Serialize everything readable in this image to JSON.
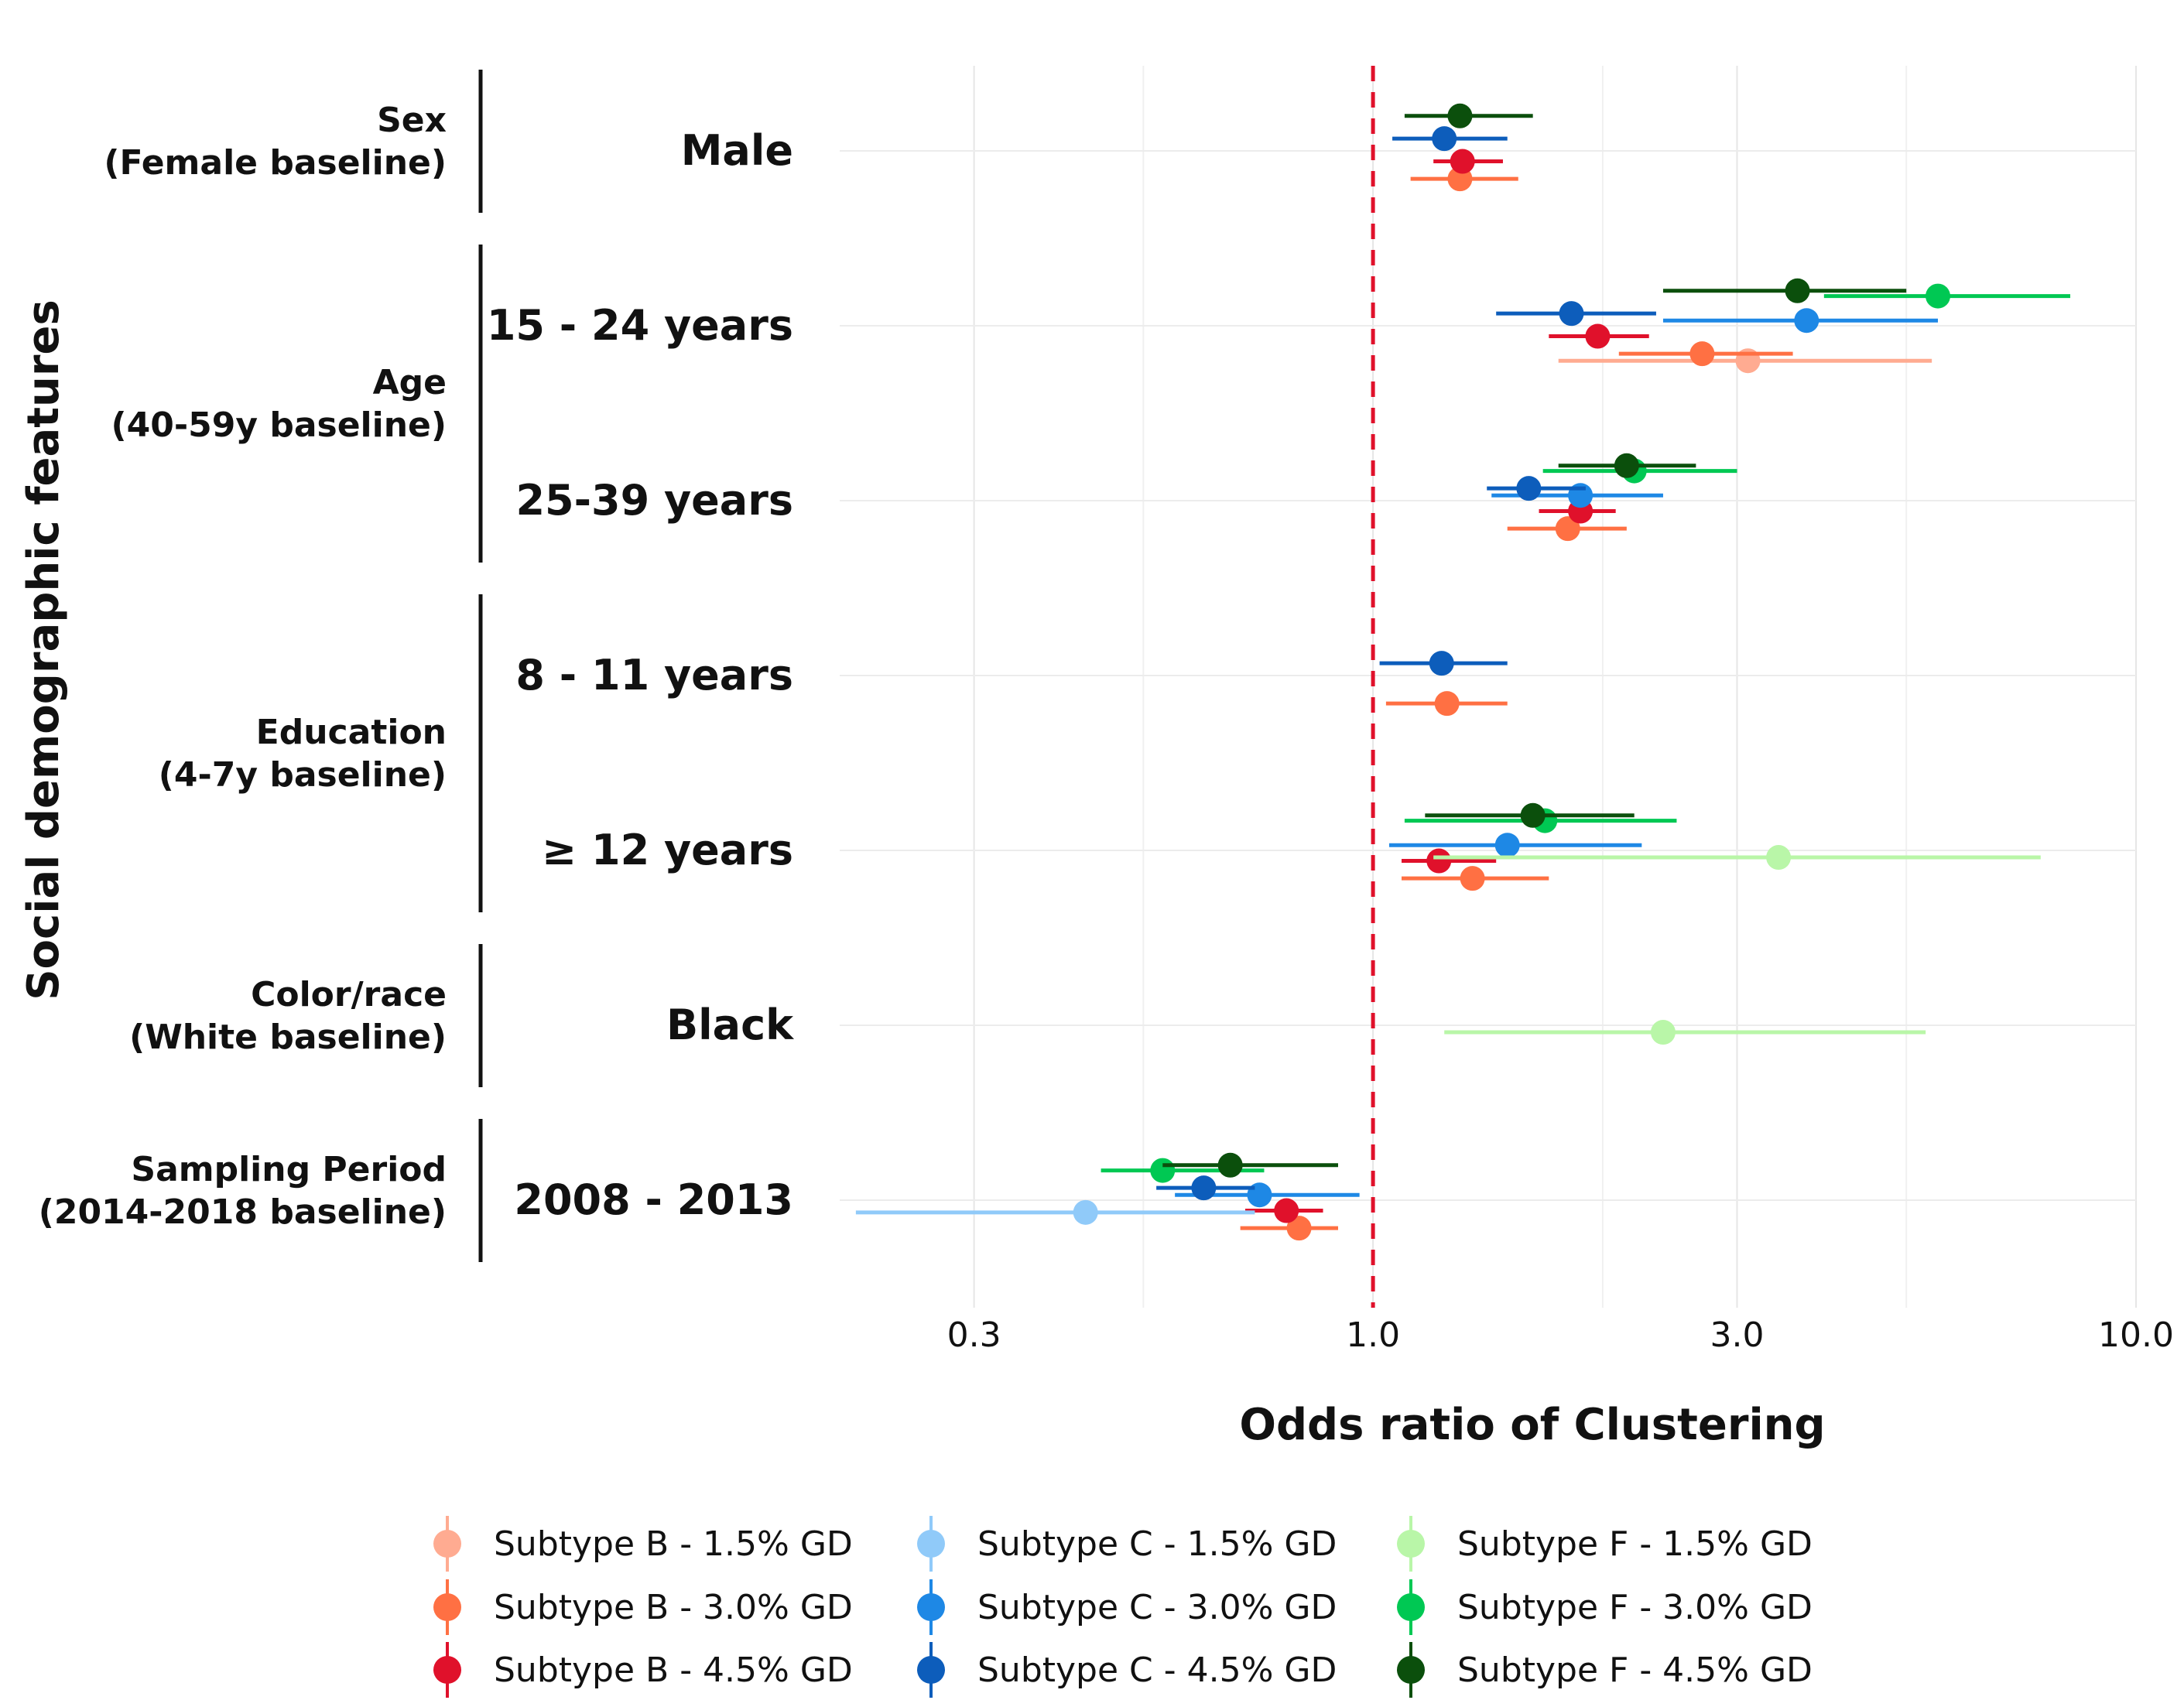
{
  "chart_data": {
    "type": "forest",
    "xlabel": "Odds ratio of Clustering",
    "ylabel": "Social demographic features",
    "x_scale": "log",
    "xlim": [
      0.2,
      10.0
    ],
    "x_ticks": [
      "0.3",
      "1.0",
      "3.0",
      "10.0"
    ],
    "reference_line": 1.0,
    "grid": true,
    "legend_position": "bottom",
    "groups": [
      {
        "lines": [
          "Sex",
          "(Female baseline)"
        ],
        "rows": [
          "Male"
        ]
      },
      {
        "lines": [
          "Age",
          "(40-59y baseline)"
        ],
        "rows": [
          "15 - 24 years",
          "25-39 years"
        ]
      },
      {
        "lines": [
          "Education",
          "(4-7y baseline)"
        ],
        "rows": [
          "8 - 11 years",
          "≥ 12 years"
        ]
      },
      {
        "lines": [
          "Color/race",
          "(White baseline)"
        ],
        "rows": [
          "Black"
        ]
      },
      {
        "lines": [
          "Sampling Period",
          "(2014-2018 baseline)"
        ],
        "rows": [
          "2008 - 2013"
        ]
      }
    ],
    "rows": [
      "Male",
      "15 - 24 years",
      "25-39 years",
      "8 - 11 years",
      "≥ 12 years",
      "Black",
      "2008 - 2013"
    ],
    "series": [
      {
        "name": "Subtype B - 1.5% GD",
        "color": "#FFAB91",
        "offset": 0.2,
        "points": [
          {
            "row": "15 - 24 years",
            "or": 3.1,
            "lo": 1.75,
            "hi": 5.4
          }
        ]
      },
      {
        "name": "Subtype B - 3.0% GD",
        "color": "#FF7043",
        "offset": 0.16,
        "points": [
          {
            "row": "Male",
            "or": 1.3,
            "lo": 1.12,
            "hi": 1.55
          },
          {
            "row": "15 - 24 years",
            "or": 2.7,
            "lo": 2.1,
            "hi": 3.55
          },
          {
            "row": "25-39 years",
            "or": 1.8,
            "lo": 1.5,
            "hi": 2.15
          },
          {
            "row": "8 - 11 years",
            "or": 1.25,
            "lo": 1.04,
            "hi": 1.5
          },
          {
            "row": "≥ 12 years",
            "or": 1.35,
            "lo": 1.09,
            "hi": 1.7
          },
          {
            "row": "2008 - 2013",
            "or": 0.8,
            "lo": 0.67,
            "hi": 0.9
          }
        ]
      },
      {
        "name": "Subtype B - 4.5% GD",
        "color": "#E0112B",
        "offset": 0.06,
        "points": [
          {
            "row": "Male",
            "or": 1.31,
            "lo": 1.2,
            "hi": 1.48
          },
          {
            "row": "15 - 24 years",
            "or": 1.97,
            "lo": 1.7,
            "hi": 2.3
          },
          {
            "row": "25-39 years",
            "or": 1.87,
            "lo": 1.65,
            "hi": 2.08
          },
          {
            "row": "≥ 12 years",
            "or": 1.22,
            "lo": 1.09,
            "hi": 1.45
          },
          {
            "row": "2008 - 2013",
            "or": 0.77,
            "lo": 0.68,
            "hi": 0.86
          }
        ]
      },
      {
        "name": "Subtype C - 1.5% GD",
        "color": "#90CAF9",
        "offset": 0.07,
        "points": [
          {
            "row": "2008 - 2013",
            "or": 0.42,
            "lo": 0.21,
            "hi": 0.7
          }
        ]
      },
      {
        "name": "Subtype C - 3.0% GD",
        "color": "#1E88E5",
        "offset": -0.03,
        "points": [
          {
            "row": "15 - 24 years",
            "or": 3.7,
            "lo": 2.4,
            "hi": 5.5
          },
          {
            "row": "25-39 years",
            "or": 1.87,
            "lo": 1.43,
            "hi": 2.4
          },
          {
            "row": "≥ 12 years",
            "or": 1.5,
            "lo": 1.05,
            "hi": 2.25
          },
          {
            "row": "2008 - 2013",
            "or": 0.71,
            "lo": 0.55,
            "hi": 0.96
          }
        ]
      },
      {
        "name": "Subtype C - 4.5% GD",
        "color": "#0D5DBB",
        "offset": -0.07,
        "points": [
          {
            "row": "Male",
            "or": 1.24,
            "lo": 1.06,
            "hi": 1.5
          },
          {
            "row": "15 - 24 years",
            "or": 1.82,
            "lo": 1.45,
            "hi": 2.35
          },
          {
            "row": "25-39 years",
            "or": 1.6,
            "lo": 1.41,
            "hi": 1.9
          },
          {
            "row": "8 - 11 years",
            "or": 1.23,
            "lo": 1.02,
            "hi": 1.5
          },
          {
            "row": "2008 - 2013",
            "or": 0.6,
            "lo": 0.52,
            "hi": 0.7
          }
        ]
      },
      {
        "name": "Subtype F - 1.5% GD",
        "color": "#B9F6A8",
        "offset": 0.04,
        "points": [
          {
            "row": "≥ 12 years",
            "or": 3.4,
            "lo": 1.2,
            "hi": 7.5
          },
          {
            "row": "Black",
            "or": 2.4,
            "lo": 1.24,
            "hi": 5.3
          }
        ]
      },
      {
        "name": "Subtype F - 3.0% GD",
        "color": "#00C853",
        "offset": -0.17,
        "points": [
          {
            "row": "15 - 24 years",
            "or": 5.5,
            "lo": 3.9,
            "hi": 8.2
          },
          {
            "row": "25-39 years",
            "or": 2.2,
            "lo": 1.67,
            "hi": 3.0
          },
          {
            "row": "≥ 12 years",
            "or": 1.68,
            "lo": 1.1,
            "hi": 2.5
          },
          {
            "row": "2008 - 2013",
            "or": 0.53,
            "lo": 0.44,
            "hi": 0.72
          }
        ]
      },
      {
        "name": "Subtype F - 4.5% GD",
        "color": "#0B4F0C",
        "offset": -0.2,
        "points": [
          {
            "row": "Male",
            "or": 1.3,
            "lo": 1.1,
            "hi": 1.62
          },
          {
            "row": "15 - 24 years",
            "or": 3.6,
            "lo": 2.4,
            "hi": 5.0
          },
          {
            "row": "25-39 years",
            "or": 2.15,
            "lo": 1.75,
            "hi": 2.65
          },
          {
            "row": "≥ 12 years",
            "or": 1.62,
            "lo": 1.17,
            "hi": 2.2
          },
          {
            "row": "2008 - 2013",
            "or": 0.65,
            "lo": 0.53,
            "hi": 0.9
          }
        ]
      }
    ]
  }
}
